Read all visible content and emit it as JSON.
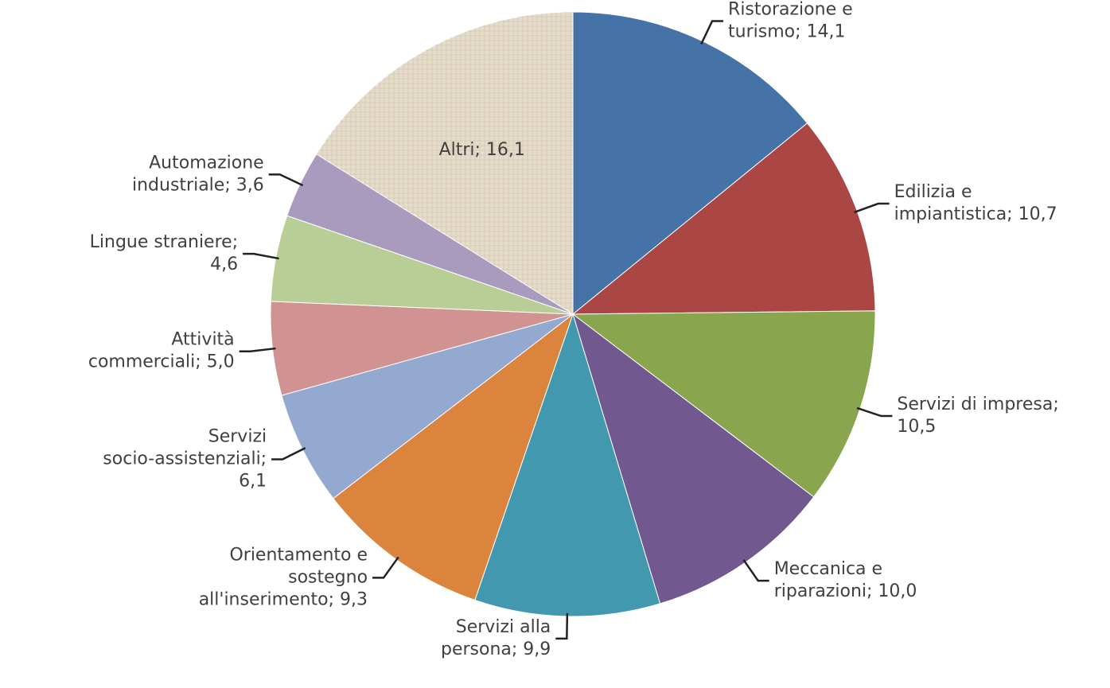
{
  "chart_data": {
    "type": "pie",
    "values": [
      14.1,
      10.7,
      10.5,
      10.0,
      9.9,
      9.3,
      6.1,
      5.0,
      4.6,
      3.6,
      16.1
    ],
    "value_labels": [
      "Ristorazione e turismo; 14,1",
      "Edilizia e impiantistica; 10,7",
      "Servizi di impresa; 10,5",
      "Meccanica e riparazioni; 10,0",
      "Servizi alla persona; 9,9",
      "Orientamento e sostegno all'inserimento; 9,3",
      "Servizi socio-assistenziali; 6,1",
      "Attività commerciali; 5,0",
      "Lingue straniere; 4,6",
      "Automazione industriale; 3,6",
      "Altri; 16,1"
    ],
    "colors": [
      "#4572a7",
      "#aa4643",
      "#89a54e",
      "#71588f",
      "#4198af",
      "#db843d",
      "#93a9cf",
      "#d19392",
      "#b9cd96",
      "#a99bbd",
      "#e6dccb"
    ]
  }
}
